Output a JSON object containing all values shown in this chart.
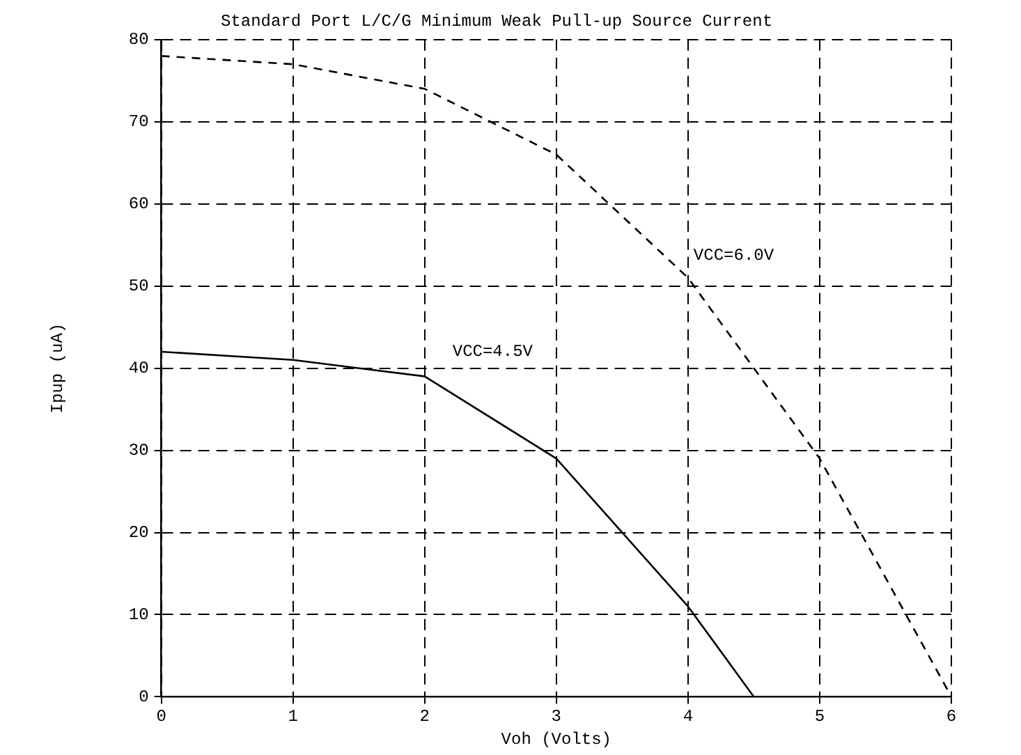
{
  "chart_data": {
    "type": "line",
    "title": "Standard Port L/C/G Minimum Weak Pull-up Source Current",
    "xlabel": "Voh (Volts)",
    "ylabel": "Ipup (uA)",
    "xlim": [
      0,
      6
    ],
    "xticks": [
      0,
      1,
      2,
      3,
      4,
      5,
      6
    ],
    "ylim": [
      0,
      80
    ],
    "yticks": [
      0,
      10,
      20,
      30,
      40,
      50,
      60,
      70,
      80
    ],
    "grid": true,
    "marker": "none",
    "series": [
      {
        "name": "VCC=4.5V",
        "x": [
          0,
          1,
          2,
          3,
          4,
          4.5
        ],
        "values": [
          42,
          41,
          39,
          29,
          11,
          0
        ],
        "color": "#000000",
        "line_style": "solid"
      },
      {
        "name": "VCC=6.0V",
        "x": [
          0,
          1,
          2,
          3,
          4,
          5,
          6
        ],
        "values": [
          78,
          77,
          74,
          66,
          51,
          29,
          0
        ],
        "color": "#000000",
        "line_style": "dashed"
      }
    ]
  }
}
